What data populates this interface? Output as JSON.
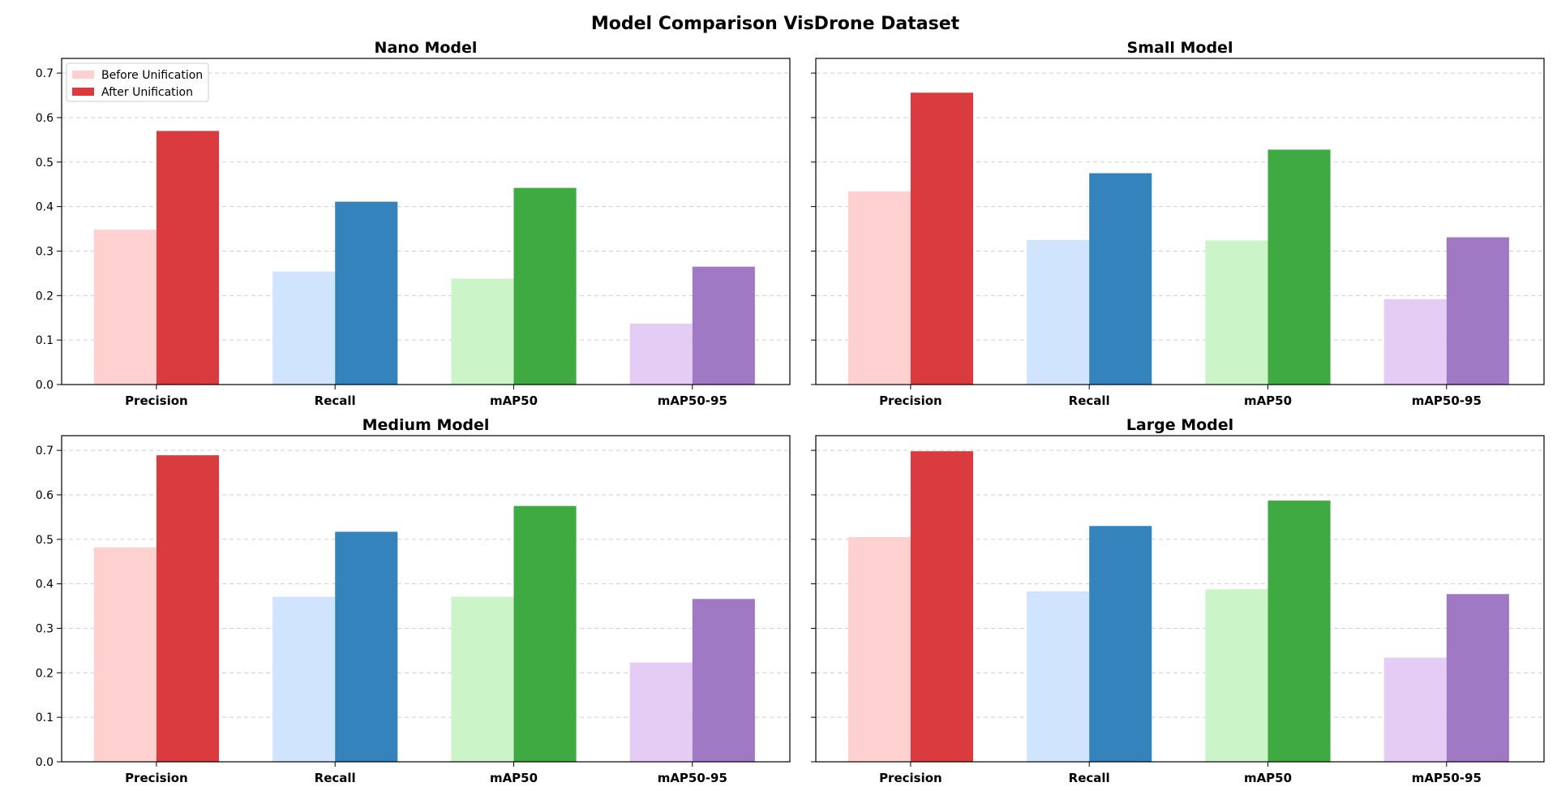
{
  "figure": {
    "suptitle": "Model Comparison VisDrone Dataset"
  },
  "legend": {
    "placement": "upper-left",
    "entries": [
      {
        "label": "Before Unification",
        "color": "#ffcfcf"
      },
      {
        "label": "After Unification",
        "color": "#d93b3f"
      }
    ]
  },
  "colors": {
    "before": [
      "#ffd0d0",
      "#d0e5fd",
      "#cbf5c8",
      "#e4ccf4"
    ],
    "after": [
      "#d93b3f",
      "#3483bd",
      "#3fa942",
      "#a079c5"
    ]
  },
  "chart_data": [
    {
      "type": "bar",
      "title": "Nano Model",
      "categories": [
        "Precision",
        "Recall",
        "mAP50",
        "mAP50-95"
      ],
      "series": [
        {
          "name": "Before Unification",
          "values": [
            0.348,
            0.254,
            0.238,
            0.137
          ]
        },
        {
          "name": "After Unification",
          "values": [
            0.57,
            0.411,
            0.442,
            0.265
          ]
        }
      ],
      "ylim": [
        0,
        0.733
      ],
      "yticks": [
        "0.0",
        "0.1",
        "0.2",
        "0.3",
        "0.4",
        "0.5",
        "0.6",
        "0.7"
      ],
      "grid": true,
      "legend": true
    },
    {
      "type": "bar",
      "title": "Small Model",
      "categories": [
        "Precision",
        "Recall",
        "mAP50",
        "mAP50-95"
      ],
      "series": [
        {
          "name": "Before Unification",
          "values": [
            0.434,
            0.325,
            0.324,
            0.192
          ]
        },
        {
          "name": "After Unification",
          "values": [
            0.656,
            0.475,
            0.528,
            0.331
          ]
        }
      ],
      "ylim": [
        0,
        0.733
      ],
      "grid": true,
      "legend": false
    },
    {
      "type": "bar",
      "title": "Medium Model",
      "categories": [
        "Precision",
        "Recall",
        "mAP50",
        "mAP50-95"
      ],
      "series": [
        {
          "name": "Before Unification",
          "values": [
            0.482,
            0.371,
            0.371,
            0.223
          ]
        },
        {
          "name": "After Unification",
          "values": [
            0.689,
            0.517,
            0.575,
            0.366
          ]
        }
      ],
      "ylim": [
        0,
        0.733
      ],
      "yticks": [
        "0.0",
        "0.1",
        "0.2",
        "0.3",
        "0.4",
        "0.5",
        "0.6",
        "0.7"
      ],
      "grid": true,
      "legend": false
    },
    {
      "type": "bar",
      "title": "Large Model",
      "categories": [
        "Precision",
        "Recall",
        "mAP50",
        "mAP50-95"
      ],
      "series": [
        {
          "name": "Before Unification",
          "values": [
            0.505,
            0.383,
            0.388,
            0.234
          ]
        },
        {
          "name": "After Unification",
          "values": [
            0.698,
            0.53,
            0.587,
            0.377
          ]
        }
      ],
      "ylim": [
        0,
        0.733
      ],
      "grid": true,
      "legend": false
    }
  ]
}
